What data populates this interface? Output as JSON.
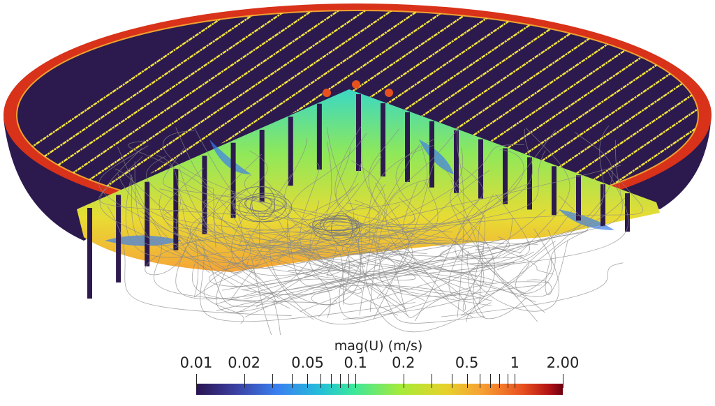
{
  "visualization": {
    "colors": {
      "background": "#ffffff",
      "dome_interior": "#2c1a4e",
      "rim": "#e23a18",
      "stripe": "#f2e23c",
      "streamline": "#8a8a8a"
    }
  },
  "colorbar": {
    "title": "mag(U) (m/s)",
    "scale": "log",
    "range": [
      0.01,
      2.0
    ],
    "labels": [
      {
        "value": 0.01,
        "text": "0.01"
      },
      {
        "value": 0.02,
        "text": "0.02"
      },
      {
        "value": 0.05,
        "text": "0.05"
      },
      {
        "value": 0.1,
        "text": "0.1"
      },
      {
        "value": 0.2,
        "text": "0.2"
      },
      {
        "value": 0.5,
        "text": "0.5"
      },
      {
        "value": 1,
        "text": "1"
      },
      {
        "value": 2.0,
        "text": "2.00"
      }
    ],
    "ticks": [
      0.01,
      0.02,
      0.03,
      0.04,
      0.05,
      0.06,
      0.07,
      0.08,
      0.09,
      0.1,
      0.2,
      0.3,
      0.4,
      0.5,
      0.6,
      0.7,
      0.8,
      0.9,
      1,
      2
    ]
  }
}
